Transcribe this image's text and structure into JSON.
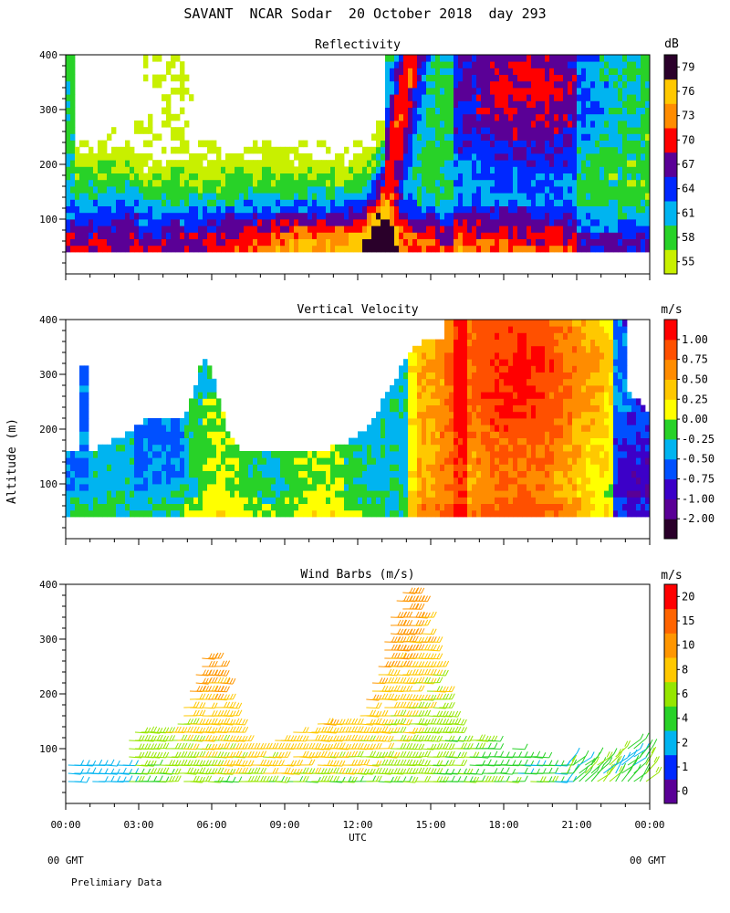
{
  "figure_title": "SAVANT  NCAR Sodar  20 October 2018  day 293",
  "y_axis_label": "Altitude (m)",
  "x_axis_label": "UTC",
  "footer_left_time": "00 GMT",
  "footer_right_time": "00 GMT",
  "footer_note": "Prelimiary Data",
  "chart_data": [
    {
      "type": "heatmap",
      "title": "Reflectivity",
      "xlabel": "UTC",
      "ylabel": "Altitude (m)",
      "x_ticks": [
        "00:00",
        "03:00",
        "06:00",
        "09:00",
        "12:00",
        "15:00",
        "18:00",
        "21:00",
        "00:00"
      ],
      "xlim_hours": [
        0,
        24
      ],
      "ylim": [
        0,
        400
      ],
      "y_ticks": [
        100,
        200,
        300,
        400
      ],
      "data_altitude_range": [
        40,
        400
      ],
      "colorbar_unit": "dB",
      "colorbar_labels": [
        "55",
        "58",
        "61",
        "64",
        "67",
        "70",
        "73",
        "76",
        "79"
      ],
      "colorbar_colors": [
        "#c8f000",
        "#28d228",
        "#00b4f0",
        "#0028ff",
        "#5a0096",
        "#ff0000",
        "#ff8c00",
        "#ffc800",
        "#2a002a"
      ],
      "colorbar_values": [
        55,
        58,
        61,
        64,
        67,
        70,
        73,
        76,
        79
      ]
    },
    {
      "type": "heatmap",
      "title": "Vertical Velocity",
      "xlabel": "UTC",
      "ylabel": "Altitude (m)",
      "x_ticks": [
        "00:00",
        "03:00",
        "06:00",
        "09:00",
        "12:00",
        "15:00",
        "18:00",
        "21:00",
        "00:00"
      ],
      "xlim_hours": [
        0,
        24
      ],
      "ylim": [
        0,
        400
      ],
      "y_ticks": [
        100,
        200,
        300,
        400
      ],
      "data_altitude_range": [
        40,
        400
      ],
      "colorbar_unit": "m/s",
      "colorbar_labels": [
        "-2.00",
        "-1.00",
        "-0.75",
        "-0.50",
        "-0.25",
        "0.00",
        "0.25",
        "0.50",
        "0.75",
        "1.00"
      ],
      "colorbar_colors": [
        "#2a002a",
        "#5a0096",
        "#3c00c8",
        "#0050ff",
        "#00b4f0",
        "#28d228",
        "#ffff00",
        "#ffc800",
        "#ff8c00",
        "#ff5000",
        "#ff0000"
      ],
      "colorbar_values": [
        -2.0,
        -1.0,
        -0.75,
        -0.5,
        -0.25,
        0.0,
        0.25,
        0.5,
        0.75,
        1.0
      ]
    },
    {
      "type": "scatter",
      "title": "Wind Barbs (m/s)",
      "xlabel": "UTC",
      "ylabel": "Altitude (m)",
      "x_ticks": [
        "00:00",
        "03:00",
        "06:00",
        "09:00",
        "12:00",
        "15:00",
        "18:00",
        "21:00",
        "00:00"
      ],
      "xlim_hours": [
        0,
        24
      ],
      "ylim": [
        0,
        400
      ],
      "y_ticks": [
        100,
        200,
        300,
        400
      ],
      "colorbar_unit": "m/s",
      "colorbar_labels": [
        "0",
        "1",
        "2",
        "4",
        "6",
        "8",
        "10",
        "15",
        "20"
      ],
      "colorbar_colors": [
        "#5a0096",
        "#0028ff",
        "#00b4f0",
        "#28d228",
        "#96e600",
        "#ffc800",
        "#ff9600",
        "#ff6400",
        "#ff0000"
      ],
      "colorbar_values": [
        0,
        1,
        2,
        4,
        6,
        8,
        10,
        15,
        20
      ]
    }
  ]
}
